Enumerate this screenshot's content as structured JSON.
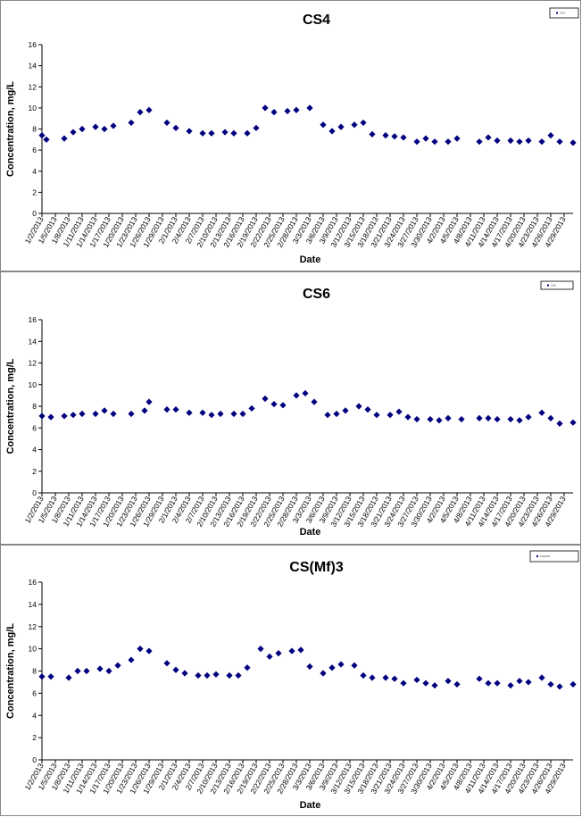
{
  "page": {
    "background": "#ffffff",
    "marker_color": "#00007f"
  },
  "chart_data": [
    {
      "type": "scatter",
      "title": "CS4",
      "xlabel": "Date",
      "ylabel": "Concentration, mg/L",
      "ylim": [
        0,
        16
      ],
      "yticks": [
        0,
        2,
        4,
        6,
        8,
        10,
        12,
        14,
        16
      ],
      "xlim": [
        "2013-01-02",
        "2013-05-01"
      ],
      "xtick_labels": [
        "1/2/2013",
        "1/5/2013",
        "1/8/2013",
        "1/11/2013",
        "1/14/2013",
        "1/17/2013",
        "1/20/2013",
        "1/23/2013",
        "1/26/2013",
        "1/29/2013",
        "2/1/2013",
        "2/4/2013",
        "2/7/2013",
        "2/10/2013",
        "2/13/2013",
        "2/16/2013",
        "2/19/2013",
        "2/22/2013",
        "2/25/2013",
        "2/28/2013",
        "3/3/2013",
        "3/6/2013",
        "3/9/2013",
        "3/12/2013",
        "3/15/2013",
        "3/18/2013",
        "3/21/2013",
        "3/24/2013",
        "3/27/2013",
        "3/30/2013",
        "4/2/2013",
        "4/5/2013",
        "4/8/2013",
        "4/11/2013",
        "4/14/2013",
        "4/17/2013",
        "4/20/2013",
        "4/23/2013",
        "4/26/2013",
        "4/29/2013"
      ],
      "grid": false,
      "legend_position": "top-right",
      "legend_label": "CS4",
      "series": [
        {
          "name": "CS4",
          "color": "#00007f",
          "x": [
            "2013-01-02",
            "2013-01-03",
            "2013-01-07",
            "2013-01-09",
            "2013-01-11",
            "2013-01-14",
            "2013-01-16",
            "2013-01-18",
            "2013-01-22",
            "2013-01-24",
            "2013-01-26",
            "2013-01-30",
            "2013-02-01",
            "2013-02-04",
            "2013-02-07",
            "2013-02-09",
            "2013-02-12",
            "2013-02-14",
            "2013-02-17",
            "2013-02-19",
            "2013-02-21",
            "2013-02-23",
            "2013-02-26",
            "2013-02-28",
            "2013-03-03",
            "2013-03-06",
            "2013-03-08",
            "2013-03-10",
            "2013-03-13",
            "2013-03-15",
            "2013-03-17",
            "2013-03-20",
            "2013-03-22",
            "2013-03-24",
            "2013-03-27",
            "2013-03-29",
            "2013-03-31",
            "2013-04-03",
            "2013-04-05",
            "2013-04-10",
            "2013-04-12",
            "2013-04-14",
            "2013-04-17",
            "2013-04-19",
            "2013-04-21",
            "2013-04-24",
            "2013-04-26",
            "2013-04-28",
            "2013-05-01"
          ],
          "y": [
            7.4,
            7.0,
            7.1,
            7.7,
            8.0,
            8.2,
            8.0,
            8.3,
            8.6,
            9.6,
            9.8,
            8.6,
            8.1,
            7.8,
            7.6,
            7.6,
            7.7,
            7.6,
            7.6,
            8.1,
            10.0,
            9.6,
            9.7,
            9.8,
            10.0,
            8.4,
            7.8,
            8.2,
            8.4,
            8.6,
            7.5,
            7.4,
            7.3,
            7.2,
            6.8,
            7.1,
            6.8,
            6.8,
            7.1,
            6.8,
            7.2,
            6.9,
            6.9,
            6.8,
            6.9,
            6.8,
            7.4,
            6.8,
            6.7
          ]
        }
      ]
    },
    {
      "type": "scatter",
      "title": "CS6",
      "xlabel": "Date",
      "ylabel": "Concentration, mg/L",
      "ylim": [
        0,
        16
      ],
      "yticks": [
        0,
        2,
        4,
        6,
        8,
        10,
        12,
        14,
        16
      ],
      "xlim": [
        "2013-01-02",
        "2013-05-01"
      ],
      "xtick_labels": [
        "1/2/2013",
        "1/5/2013",
        "1/8/2013",
        "1/11/2013",
        "1/14/2013",
        "1/17/2013",
        "1/20/2013",
        "1/23/2013",
        "1/26/2013",
        "1/29/2013",
        "2/1/2013",
        "2/4/2013",
        "2/7/2013",
        "2/10/2013",
        "2/13/2013",
        "2/16/2013",
        "2/19/2013",
        "2/22/2013",
        "2/25/2013",
        "2/28/2013",
        "3/3/2013",
        "3/6/2013",
        "3/9/2013",
        "3/12/2013",
        "3/15/2013",
        "3/18/2013",
        "3/21/2013",
        "3/24/2013",
        "3/27/2013",
        "3/30/2013",
        "4/2/2013",
        "4/5/2013",
        "4/8/2013",
        "4/11/2013",
        "4/14/2013",
        "4/17/2013",
        "4/20/2013",
        "4/23/2013",
        "4/26/2013",
        "4/29/2013"
      ],
      "grid": false,
      "legend_position": "top-right",
      "legend_label": "CS6",
      "series": [
        {
          "name": "CS6",
          "color": "#00007f",
          "x": [
            "2013-01-02",
            "2013-01-04",
            "2013-01-07",
            "2013-01-09",
            "2013-01-11",
            "2013-01-14",
            "2013-01-16",
            "2013-01-18",
            "2013-01-22",
            "2013-01-25",
            "2013-01-26",
            "2013-01-30",
            "2013-02-01",
            "2013-02-04",
            "2013-02-07",
            "2013-02-09",
            "2013-02-11",
            "2013-02-14",
            "2013-02-16",
            "2013-02-18",
            "2013-02-21",
            "2013-02-23",
            "2013-02-25",
            "2013-02-28",
            "2013-03-02",
            "2013-03-04",
            "2013-03-07",
            "2013-03-09",
            "2013-03-11",
            "2013-03-14",
            "2013-03-16",
            "2013-03-18",
            "2013-03-21",
            "2013-03-23",
            "2013-03-25",
            "2013-03-27",
            "2013-03-30",
            "2013-04-01",
            "2013-04-03",
            "2013-04-06",
            "2013-04-10",
            "2013-04-12",
            "2013-04-14",
            "2013-04-17",
            "2013-04-19",
            "2013-04-21",
            "2013-04-24",
            "2013-04-26",
            "2013-04-28",
            "2013-05-01"
          ],
          "y": [
            7.1,
            7.0,
            7.1,
            7.2,
            7.3,
            7.3,
            7.6,
            7.3,
            7.3,
            7.6,
            8.4,
            7.7,
            7.7,
            7.4,
            7.4,
            7.2,
            7.3,
            7.3,
            7.3,
            7.8,
            8.7,
            8.2,
            8.1,
            9.0,
            9.2,
            8.4,
            7.2,
            7.3,
            7.6,
            8.0,
            7.7,
            7.2,
            7.2,
            7.5,
            7.0,
            6.8,
            6.8,
            6.7,
            6.9,
            6.8,
            6.9,
            6.9,
            6.8,
            6.8,
            6.7,
            7.0,
            7.4,
            6.9,
            6.4,
            6.5
          ]
        }
      ]
    },
    {
      "type": "scatter",
      "title": "CS(Mf)3",
      "xlabel": "Date",
      "ylabel": "Concentration, mg/L",
      "ylim": [
        0,
        16
      ],
      "yticks": [
        0,
        2,
        4,
        6,
        8,
        10,
        12,
        14,
        16
      ],
      "xlim": [
        "2013-01-02",
        "2013-05-01"
      ],
      "xtick_labels": [
        "1/2/2013",
        "1/5/2013",
        "1/8/2013",
        "1/11/2013",
        "1/14/2013",
        "1/17/2013",
        "1/20/2013",
        "1/23/2013",
        "1/26/2013",
        "1/29/2013",
        "2/1/2013",
        "2/4/2013",
        "2/7/2013",
        "2/10/2013",
        "2/13/2013",
        "2/16/2013",
        "2/19/2013",
        "2/22/2013",
        "2/25/2013",
        "2/28/2013",
        "3/3/2013",
        "3/6/2013",
        "3/9/2013",
        "3/12/2013",
        "3/15/2013",
        "3/18/2013",
        "3/21/2013",
        "3/24/2013",
        "3/27/2013",
        "3/30/2013",
        "4/2/2013",
        "4/5/2013",
        "4/8/2013",
        "4/11/2013",
        "4/14/2013",
        "4/17/2013",
        "4/20/2013",
        "4/23/2013",
        "4/26/2013",
        "4/29/2013"
      ],
      "grid": false,
      "legend_position": "top-right",
      "legend_label": "CS(Mf)3",
      "series": [
        {
          "name": "CS(Mf)3",
          "color": "#00007f",
          "x": [
            "2013-01-02",
            "2013-01-04",
            "2013-01-08",
            "2013-01-10",
            "2013-01-12",
            "2013-01-15",
            "2013-01-17",
            "2013-01-19",
            "2013-01-22",
            "2013-01-24",
            "2013-01-26",
            "2013-01-30",
            "2013-02-01",
            "2013-02-03",
            "2013-02-06",
            "2013-02-08",
            "2013-02-10",
            "2013-02-13",
            "2013-02-15",
            "2013-02-17",
            "2013-02-20",
            "2013-02-22",
            "2013-02-24",
            "2013-02-27",
            "2013-03-01",
            "2013-03-03",
            "2013-03-06",
            "2013-03-08",
            "2013-03-10",
            "2013-03-13",
            "2013-03-15",
            "2013-03-17",
            "2013-03-20",
            "2013-03-22",
            "2013-03-24",
            "2013-03-27",
            "2013-03-29",
            "2013-03-31",
            "2013-04-03",
            "2013-04-05",
            "2013-04-10",
            "2013-04-12",
            "2013-04-14",
            "2013-04-17",
            "2013-04-19",
            "2013-04-21",
            "2013-04-24",
            "2013-04-26",
            "2013-04-28",
            "2013-05-01"
          ],
          "y": [
            7.5,
            7.5,
            7.4,
            8.0,
            8.0,
            8.2,
            8.0,
            8.5,
            9.0,
            10.0,
            9.8,
            8.7,
            8.1,
            7.8,
            7.6,
            7.6,
            7.7,
            7.6,
            7.6,
            8.3,
            10.0,
            9.3,
            9.6,
            9.8,
            9.9,
            8.4,
            7.8,
            8.3,
            8.6,
            8.5,
            7.6,
            7.4,
            7.4,
            7.3,
            6.9,
            7.2,
            6.9,
            6.7,
            7.1,
            6.8,
            7.3,
            6.9,
            6.9,
            6.7,
            7.1,
            7.0,
            7.4,
            6.8,
            6.6,
            6.8
          ]
        }
      ]
    }
  ]
}
